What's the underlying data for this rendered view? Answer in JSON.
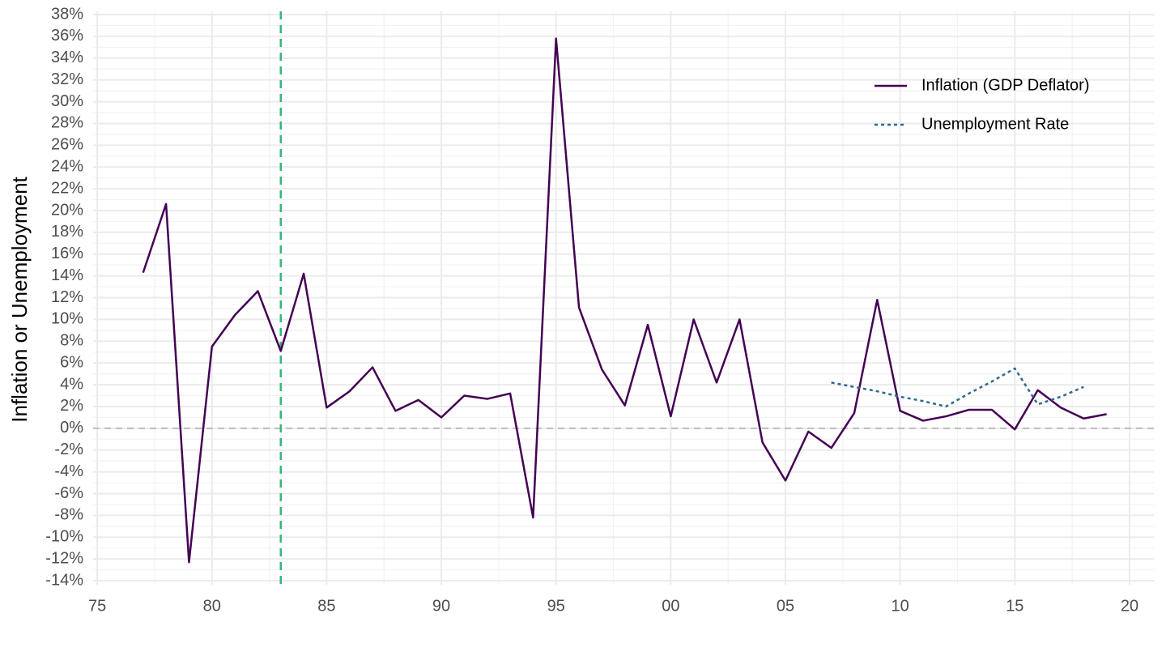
{
  "chart_data": {
    "type": "line",
    "y_label": "Inflation or Unemployment",
    "xlim": [
      1974.82,
      2021.06
    ],
    "ylim": [
      -14.37,
      38.3
    ],
    "xticks": [
      {
        "value": 1975,
        "label": "75"
      },
      {
        "value": 1980,
        "label": "80"
      },
      {
        "value": 1985,
        "label": "85"
      },
      {
        "value": 1990,
        "label": "90"
      },
      {
        "value": 1995,
        "label": "95"
      },
      {
        "value": 2000,
        "label": "00"
      },
      {
        "value": 2005,
        "label": "05"
      },
      {
        "value": 2010,
        "label": "10"
      },
      {
        "value": 2015,
        "label": "15"
      },
      {
        "value": 2020,
        "label": "20"
      }
    ],
    "yticks": [
      {
        "value": -14,
        "label": "-14%"
      },
      {
        "value": -12,
        "label": "-12%"
      },
      {
        "value": -10,
        "label": "-10%"
      },
      {
        "value": -8,
        "label": "-8%"
      },
      {
        "value": -6,
        "label": "-6%"
      },
      {
        "value": -4,
        "label": "-4%"
      },
      {
        "value": -2,
        "label": "-2%"
      },
      {
        "value": 0,
        "label": "0%"
      },
      {
        "value": 2,
        "label": "2%"
      },
      {
        "value": 4,
        "label": "4%"
      },
      {
        "value": 6,
        "label": "6%"
      },
      {
        "value": 8,
        "label": "8%"
      },
      {
        "value": 10,
        "label": "10%"
      },
      {
        "value": 12,
        "label": "12%"
      },
      {
        "value": 14,
        "label": "14%"
      },
      {
        "value": 16,
        "label": "16%"
      },
      {
        "value": 18,
        "label": "18%"
      },
      {
        "value": 20,
        "label": "20%"
      },
      {
        "value": 22,
        "label": "22%"
      },
      {
        "value": 24,
        "label": "24%"
      },
      {
        "value": 26,
        "label": "26%"
      },
      {
        "value": 28,
        "label": "28%"
      },
      {
        "value": 30,
        "label": "30%"
      },
      {
        "value": 32,
        "label": "32%"
      },
      {
        "value": 34,
        "label": "34%"
      },
      {
        "value": 36,
        "label": "36%"
      },
      {
        "value": 38,
        "label": "38%"
      }
    ],
    "grid": true,
    "legend": "top-right",
    "hline": {
      "value": 0,
      "color": "#bdbdbd"
    },
    "vline": {
      "value": 1983,
      "color": "#35b779"
    },
    "series": [
      {
        "name": "Inflation (GDP Deflator)",
        "color": "#440154",
        "dash": "solid",
        "x": [
          1977,
          1978,
          1979,
          1980,
          1981,
          1982,
          1983,
          1984,
          1985,
          1986,
          1987,
          1988,
          1989,
          1990,
          1991,
          1992,
          1993,
          1994,
          1995,
          1996,
          1997,
          1998,
          1999,
          2000,
          2001,
          2002,
          2003,
          2004,
          2005,
          2006,
          2007,
          2008,
          2009,
          2010,
          2011,
          2012,
          2013,
          2014,
          2015,
          2016,
          2017,
          2018,
          2019
        ],
        "values": [
          14.3,
          20.6,
          -12.3,
          7.5,
          10.4,
          12.6,
          7.1,
          14.2,
          1.9,
          3.4,
          5.6,
          1.6,
          2.6,
          1.0,
          3.0,
          2.7,
          3.2,
          -8.2,
          35.8,
          11.1,
          5.4,
          2.1,
          9.5,
          1.1,
          10.0,
          4.2,
          10.0,
          -1.3,
          -4.8,
          -0.3,
          -1.8,
          1.4,
          11.8,
          1.6,
          0.7,
          1.1,
          1.7,
          1.7,
          -0.1,
          3.5,
          1.9,
          0.9,
          1.3
        ]
      },
      {
        "name": "Unemployment Rate",
        "color": "#31688e",
        "dash": "dotted",
        "x": [
          2007,
          2008,
          2009,
          2010,
          2011,
          2012,
          2013,
          2014,
          2015,
          2016,
          2017,
          2018
        ],
        "values": [
          4.2,
          3.8,
          3.4,
          2.9,
          2.5,
          2.0,
          3.2,
          4.3,
          5.5,
          2.2,
          2.9,
          3.8
        ]
      }
    ]
  }
}
